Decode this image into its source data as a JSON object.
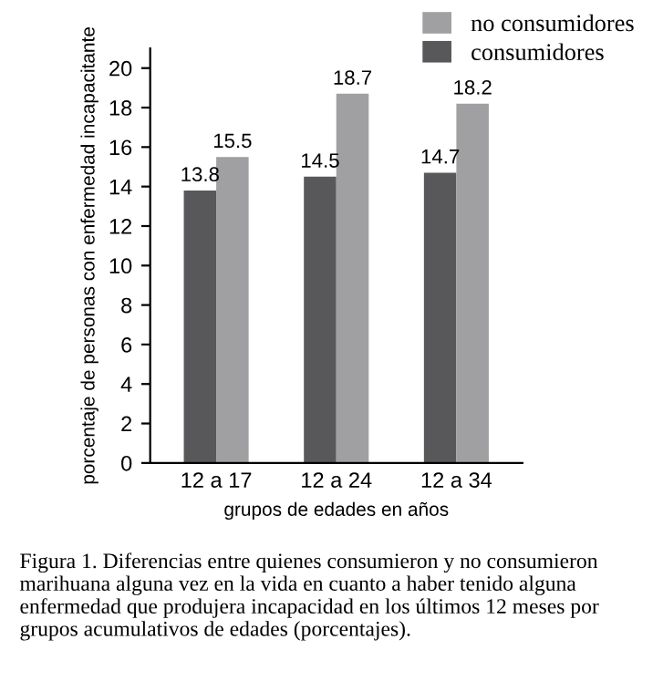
{
  "chart_data": {
    "type": "bar",
    "xlabel": "grupos de edades en años",
    "ylabel": "porcentaje de personas con enfermedad incapacitante",
    "categories": [
      "12 a 17",
      "12 a 24",
      "12 a 34"
    ],
    "series": [
      {
        "name": "consumidores",
        "color": "#58585a",
        "values": [
          13.8,
          14.5,
          14.7
        ]
      },
      {
        "name": "no consumidores",
        "color": "#a0a0a2",
        "values": [
          15.5,
          18.7,
          18.2
        ]
      }
    ],
    "ylim": [
      0,
      21
    ],
    "yticks": [
      0,
      2,
      4,
      6,
      8,
      10,
      12,
      14,
      16,
      18,
      20
    ],
    "data_labels": true,
    "grid": false,
    "legend": "top right",
    "annotations": [
      "Figura 1. Diferencias entre quienes consumieron y no consumieron marihuana alguna vez en la vida en cuanto a haber tenido alguna enfermedad que produjera incapacidad en los últimos 12 meses por grupos acumulativos de edades (porcentajes)."
    ]
  }
}
